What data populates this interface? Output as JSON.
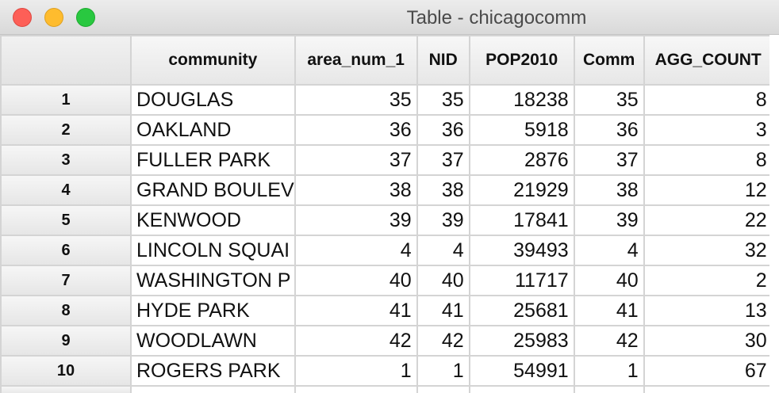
{
  "window": {
    "title": "Table - chicagocomm"
  },
  "table": {
    "columns": [
      "community",
      "area_num_1",
      "NID",
      "POP2010",
      "Comm",
      "AGG_COUNT"
    ],
    "rows": [
      {
        "id": "1",
        "community": "DOUGLAS",
        "area_num_1": "35",
        "NID": "35",
        "POP2010": "18238",
        "Comm": "35",
        "AGG_COUNT": "8"
      },
      {
        "id": "2",
        "community": "OAKLAND",
        "area_num_1": "36",
        "NID": "36",
        "POP2010": "5918",
        "Comm": "36",
        "AGG_COUNT": "3"
      },
      {
        "id": "3",
        "community": "FULLER PARK",
        "area_num_1": "37",
        "NID": "37",
        "POP2010": "2876",
        "Comm": "37",
        "AGG_COUNT": "8"
      },
      {
        "id": "4",
        "community": "GRAND BOULEV",
        "area_num_1": "38",
        "NID": "38",
        "POP2010": "21929",
        "Comm": "38",
        "AGG_COUNT": "12"
      },
      {
        "id": "5",
        "community": "KENWOOD",
        "area_num_1": "39",
        "NID": "39",
        "POP2010": "17841",
        "Comm": "39",
        "AGG_COUNT": "22"
      },
      {
        "id": "6",
        "community": "LINCOLN SQUAI",
        "area_num_1": "4",
        "NID": "4",
        "POP2010": "39493",
        "Comm": "4",
        "AGG_COUNT": "32"
      },
      {
        "id": "7",
        "community": "WASHINGTON P",
        "area_num_1": "40",
        "NID": "40",
        "POP2010": "11717",
        "Comm": "40",
        "AGG_COUNT": "2"
      },
      {
        "id": "8",
        "community": "HYDE PARK",
        "area_num_1": "41",
        "NID": "41",
        "POP2010": "25681",
        "Comm": "41",
        "AGG_COUNT": "13"
      },
      {
        "id": "9",
        "community": "WOODLAWN",
        "area_num_1": "42",
        "NID": "42",
        "POP2010": "25983",
        "Comm": "42",
        "AGG_COUNT": "30"
      },
      {
        "id": "10",
        "community": "ROGERS PARK",
        "area_num_1": "1",
        "NID": "1",
        "POP2010": "54991",
        "Comm": "1",
        "AGG_COUNT": "67"
      }
    ]
  }
}
